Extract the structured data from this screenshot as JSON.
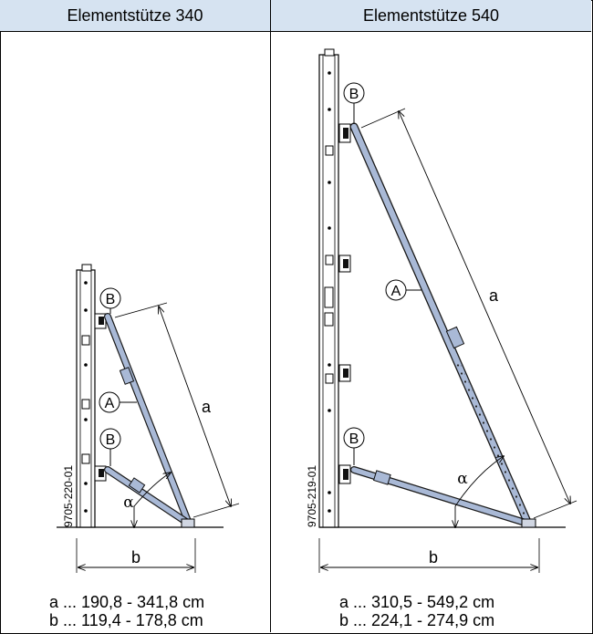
{
  "columns": [
    {
      "header": "Elementstütze 340",
      "code": "9705-220-01",
      "label_a": "a",
      "label_b": "b",
      "label_alpha": "α",
      "callout_A": "A",
      "callout_B": "B",
      "range_a": "a ... 190,8 - 341,8 cm",
      "range_b": "b ... 119,4 - 178,8 cm"
    },
    {
      "header": "Elementstütze 540",
      "code": "9705-219-01",
      "label_a": "a",
      "label_b": "b",
      "label_alpha": "α",
      "callout_A": "A",
      "callout_B": "B",
      "range_a": "a ... 310,5 - 549,2 cm",
      "range_b": "b ... 224,1 - 274,9 cm"
    }
  ],
  "colors": {
    "header_bg": "#d6e3f1",
    "strut": "#a9b9d6",
    "strut_edge": "#1a1a1a"
  }
}
